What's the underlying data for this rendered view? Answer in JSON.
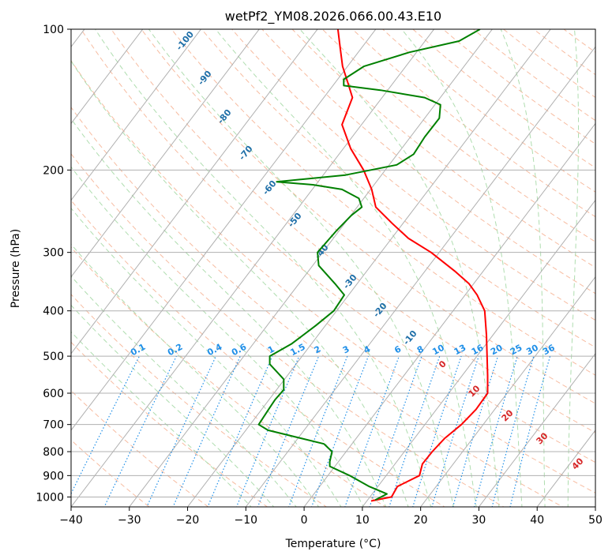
{
  "chart_data": {
    "type": "line",
    "subtype": "skew-t log-p diagram",
    "title": "wetPf2_YM08.2026.066.00.43.E10",
    "xlabel": "Temperature (°C)",
    "ylabel": "Pressure (hPa)",
    "xlim": [
      -40,
      50
    ],
    "ylim_hpa": [
      1050,
      100
    ],
    "yscale": "log",
    "grid": true,
    "x_ticks": [
      "−40",
      "−30",
      "−20",
      "−10",
      "0",
      "10",
      "20",
      "30",
      "40",
      "50"
    ],
    "y_ticks": [
      "100",
      "200",
      "300",
      "400",
      "500",
      "600",
      "700",
      "800",
      "900",
      "1000"
    ],
    "colors": {
      "temperature": "#ff0000",
      "dewpoint": "#008000",
      "isotherm": "#b0b0b0",
      "dry_adiabat": "#f4a582",
      "moist_adiabat": "#a6d9a6",
      "mixing_ratio": "#1f8fe8",
      "dry_label": "#1f6fa8",
      "moist_label": "#d62728"
    },
    "dry_adiabat_labels": [
      "-100",
      "-90",
      "-80",
      "-70",
      "-60",
      "-50",
      "-40",
      "-30",
      "-20",
      "-10"
    ],
    "moist_adiabat_labels": [
      "0",
      "10",
      "20",
      "30",
      "40"
    ],
    "mixing_ratio_labels": [
      "0.1",
      "0.2",
      "0.4",
      "0.6",
      "1",
      "1.5",
      "2",
      "3",
      "4",
      "6",
      "8",
      "10",
      "13",
      "16",
      "20",
      "25",
      "30",
      "36"
    ],
    "series": [
      {
        "name": "",
        "role": "temperature",
        "points": [
          {
            "p": 1020,
            "t": 11.5
          },
          {
            "p": 1000,
            "t": 15.0
          },
          {
            "p": 950,
            "t": 16.0
          },
          {
            "p": 900,
            "t": 19.8
          },
          {
            "p": 850,
            "t": 20.3
          },
          {
            "p": 800,
            "t": 22.0
          },
          {
            "p": 750,
            "t": 24.1
          },
          {
            "p": 700,
            "t": 27.0
          },
          {
            "p": 650,
            "t": 29.5
          },
          {
            "p": 600,
            "t": 31.5
          },
          {
            "p": 550,
            "t": 31.5
          },
          {
            "p": 500,
            "t": 31.4
          },
          {
            "p": 450,
            "t": 31.3
          },
          {
            "p": 400,
            "t": 31.0
          },
          {
            "p": 370,
            "t": 29.7
          },
          {
            "p": 350,
            "t": 28.3
          },
          {
            "p": 330,
            "t": 26.0
          },
          {
            "p": 300,
            "t": 21.8
          },
          {
            "p": 280,
            "t": 17.9
          },
          {
            "p": 260,
            "t": 15.1
          },
          {
            "p": 240,
            "t": 12.3
          },
          {
            "p": 220,
            "t": 11.6
          },
          {
            "p": 200,
            "t": 10.2
          },
          {
            "p": 180,
            "t": 8.0
          },
          {
            "p": 160,
            "t": 6.5
          },
          {
            "p": 140,
            "t": 8.3
          },
          {
            "p": 130,
            "t": 7.5
          },
          {
            "p": 120,
            "t": 6.6
          },
          {
            "p": 110,
            "t": 6.2
          },
          {
            "p": 100,
            "t": 5.8
          }
        ]
      },
      {
        "name": "",
        "role": "dewpoint",
        "points": [
          {
            "p": 1015,
            "t": 12.2
          },
          {
            "p": 985,
            "t": 14.2
          },
          {
            "p": 950,
            "t": 11.2
          },
          {
            "p": 900,
            "t": 7.8
          },
          {
            "p": 860,
            "t": 4.4
          },
          {
            "p": 840,
            "t": 4.4
          },
          {
            "p": 800,
            "t": 4.8
          },
          {
            "p": 770,
            "t": 3.4
          },
          {
            "p": 720,
            "t": -6.2
          },
          {
            "p": 700,
            "t": -7.8
          },
          {
            "p": 650,
            "t": -6.1
          },
          {
            "p": 620,
            "t": -5.0
          },
          {
            "p": 590,
            "t": -3.5
          },
          {
            "p": 560,
            "t": -3.5
          },
          {
            "p": 520,
            "t": -5.9
          },
          {
            "p": 500,
            "t": -5.9
          },
          {
            "p": 470,
            "t": -2.1
          },
          {
            "p": 430,
            "t": 2.0
          },
          {
            "p": 400,
            "t": 5.1
          },
          {
            "p": 370,
            "t": 6.9
          },
          {
            "p": 350,
            "t": 5.3
          },
          {
            "p": 320,
            "t": 2.5
          },
          {
            "p": 300,
            "t": 2.3
          },
          {
            "p": 280,
            "t": 4.4
          },
          {
            "p": 270,
            "t": 5.5
          },
          {
            "p": 250,
            "t": 8.1
          },
          {
            "p": 240,
            "t": 9.9
          },
          {
            "p": 230,
            "t": 9.4
          },
          {
            "p": 220,
            "t": 6.5
          },
          {
            "p": 215,
            "t": 1.5
          },
          {
            "p": 212,
            "t": -4.7
          },
          {
            "p": 205,
            "t": 7.1
          },
          {
            "p": 195,
            "t": 15.9
          },
          {
            "p": 185,
            "t": 18.8
          },
          {
            "p": 170,
            "t": 20.7
          },
          {
            "p": 155,
            "t": 23.2
          },
          {
            "p": 145,
            "t": 23.4
          },
          {
            "p": 140,
            "t": 20.7
          },
          {
            "p": 135,
            "t": 13.1
          },
          {
            "p": 132,
            "t": 6.8
          },
          {
            "p": 128,
            "t": 6.8
          },
          {
            "p": 120,
            "t": 10.3
          },
          {
            "p": 112,
            "t": 18.1
          },
          {
            "p": 106,
            "t": 26.6
          },
          {
            "p": 100,
            "t": 30.2
          }
        ]
      }
    ]
  }
}
